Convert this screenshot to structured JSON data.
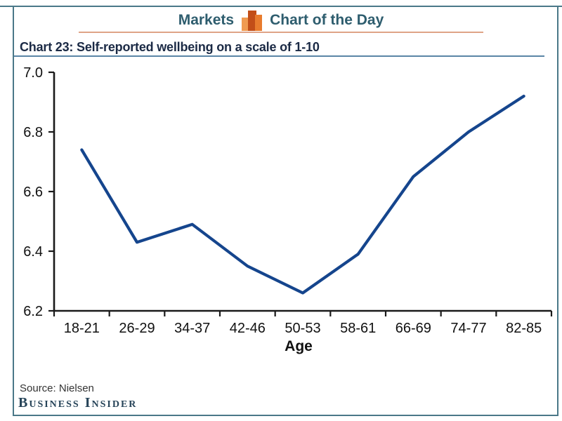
{
  "header": {
    "brand": "Markets",
    "title": "Chart of the Day"
  },
  "chart_title": "Chart 23: Self-reported wellbeing on a scale of 1-10",
  "footer": {
    "source": "Source: Nielsen",
    "logo": "Business Insider"
  },
  "colors": {
    "frame": "#4a7888",
    "header_text": "#2e5d6e",
    "title_text": "#1b2a45",
    "title_underline": "#5a85a6",
    "orange_rule": "#dfa487",
    "icon_left": "#f09a50",
    "icon_mid": "#c24e18",
    "icon_right": "#e87c2e",
    "line": "#15458d",
    "axis": "#1a1a1a",
    "tick_text": "#111111",
    "source_text": "#333333",
    "logo_text": "#274459"
  },
  "chart_data": {
    "type": "line",
    "title": "Chart 23: Self-reported wellbeing on a scale of 1-10",
    "categories": [
      "18-21",
      "26-29",
      "34-37",
      "42-46",
      "50-53",
      "58-61",
      "66-69",
      "74-77",
      "82-85"
    ],
    "values": [
      6.74,
      6.43,
      6.49,
      6.35,
      6.26,
      6.39,
      6.65,
      6.8,
      6.92
    ],
    "xlabel": "Age",
    "ylabel": "",
    "ylim": [
      6.2,
      7.0
    ],
    "yticks": [
      "7.0",
      "6.8",
      "6.6",
      "6.4",
      "6.2"
    ],
    "x_tick_style": "category-boundaries",
    "grid": false,
    "legend": false,
    "line_color": "#15458d",
    "axis_color": "#1a1a1a"
  }
}
